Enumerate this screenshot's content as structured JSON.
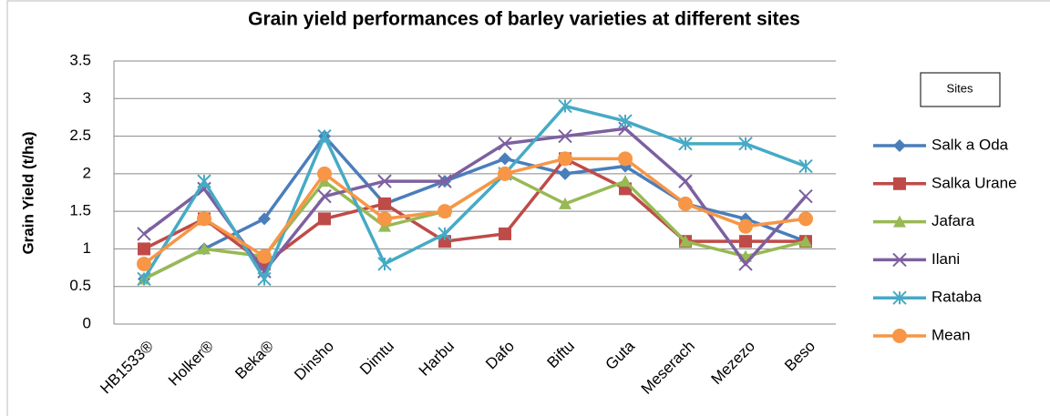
{
  "chart_data": {
    "type": "line",
    "title": "Grain yield performances of barley varieties at different sites",
    "y_label": "Grain Yield (t/ha)",
    "legend_title": "Sites",
    "categories": [
      "HB1533®",
      "Holker®",
      "Beka®",
      "Dinsho",
      "Dimtu",
      "Harbu",
      "Dafo",
      "Biftu",
      "Guta",
      "Meserach",
      "Mezezo",
      "Beso"
    ],
    "series": [
      {
        "name": "Salk a Oda",
        "color": "#4a7ebb",
        "marker": "diamond",
        "values": [
          0.6,
          1.0,
          1.4,
          2.5,
          1.6,
          1.9,
          2.2,
          2.0,
          2.1,
          1.6,
          1.4,
          1.1
        ]
      },
      {
        "name": "Salka Urane",
        "color": "#be4b48",
        "marker": "square",
        "values": [
          1.0,
          1.4,
          0.8,
          1.4,
          1.6,
          1.1,
          1.2,
          2.2,
          1.8,
          1.1,
          1.1,
          1.1
        ]
      },
      {
        "name": "Jafara",
        "color": "#98b954",
        "marker": "triangle",
        "values": [
          0.6,
          1.0,
          0.9,
          1.9,
          1.3,
          1.5,
          2.0,
          1.6,
          1.9,
          1.1,
          0.9,
          1.1
        ]
      },
      {
        "name": "Ilani",
        "color": "#7d60a0",
        "marker": "x",
        "values": [
          1.2,
          1.8,
          0.7,
          1.7,
          1.9,
          1.9,
          2.4,
          2.5,
          2.6,
          1.9,
          0.8,
          1.7
        ]
      },
      {
        "name": "Rataba",
        "color": "#46aac5",
        "marker": "star",
        "values": [
          0.6,
          1.9,
          0.6,
          2.5,
          0.8,
          1.2,
          2.0,
          2.9,
          2.7,
          2.4,
          2.4,
          2.1
        ]
      },
      {
        "name": "Mean",
        "color": "#f79646",
        "marker": "circle",
        "values": [
          0.8,
          1.4,
          0.9,
          2.0,
          1.4,
          1.5,
          2.0,
          2.2,
          2.2,
          1.6,
          1.3,
          1.4
        ]
      }
    ],
    "ylim": [
      0,
      3.5
    ],
    "yticks": [
      0,
      0.5,
      1,
      1.5,
      2,
      2.5,
      3,
      3.5
    ],
    "grid": true,
    "legend": "right"
  }
}
